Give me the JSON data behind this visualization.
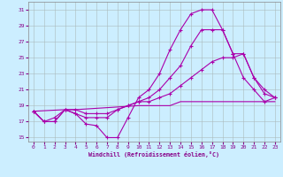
{
  "bg_color": "#cceeff",
  "line_color": "#aa00aa",
  "grid_color": "#aabbbb",
  "xlim": [
    -0.5,
    23.5
  ],
  "ylim": [
    14.5,
    32
  ],
  "yticks": [
    15,
    17,
    19,
    21,
    23,
    25,
    27,
    29,
    31
  ],
  "xticks": [
    0,
    1,
    2,
    3,
    4,
    5,
    6,
    7,
    8,
    9,
    10,
    11,
    12,
    13,
    14,
    15,
    16,
    17,
    18,
    19,
    20,
    21,
    22,
    23
  ],
  "line1_x": [
    0,
    1,
    2,
    3,
    4,
    5,
    6,
    7,
    8,
    9,
    10,
    11,
    12,
    13,
    14,
    15,
    16,
    17,
    18,
    19,
    20,
    21,
    22,
    23
  ],
  "line1_y": [
    18.3,
    17.0,
    17.0,
    18.5,
    18.0,
    16.7,
    16.5,
    15.0,
    15.0,
    17.5,
    20.0,
    21.0,
    23.0,
    26.0,
    28.5,
    30.5,
    31.0,
    31.0,
    28.5,
    25.5,
    22.5,
    21.0,
    19.5,
    20.0
  ],
  "line2_x": [
    0,
    1,
    2,
    3,
    4,
    5,
    6,
    7,
    8,
    9,
    10,
    11,
    12,
    13,
    14,
    15,
    16,
    17,
    18,
    19,
    20,
    21,
    22,
    23
  ],
  "line2_y": [
    18.3,
    17.0,
    17.0,
    18.5,
    18.0,
    17.5,
    17.5,
    17.5,
    18.5,
    19.0,
    19.5,
    20.0,
    21.0,
    22.5,
    24.0,
    26.5,
    28.5,
    28.5,
    28.5,
    25.5,
    25.5,
    22.5,
    20.5,
    20.0
  ],
  "line3_x": [
    0,
    1,
    2,
    3,
    4,
    5,
    6,
    7,
    8,
    9,
    10,
    11,
    12,
    13,
    14,
    15,
    16,
    17,
    18,
    19,
    20,
    21,
    22,
    23
  ],
  "line3_y": [
    18.3,
    17.0,
    17.5,
    18.5,
    18.5,
    18.0,
    18.0,
    18.0,
    18.5,
    19.0,
    19.5,
    19.5,
    20.0,
    20.5,
    21.5,
    22.5,
    23.5,
    24.5,
    25.0,
    25.0,
    25.5,
    22.5,
    21.0,
    20.0
  ],
  "line4_x": [
    0,
    3,
    4,
    10,
    11,
    12,
    13,
    14,
    15,
    16,
    17,
    18,
    19,
    20,
    21,
    22,
    23
  ],
  "line4_y": [
    18.3,
    18.5,
    18.5,
    19.0,
    19.0,
    19.0,
    19.0,
    19.5,
    19.5,
    19.5,
    19.5,
    19.5,
    19.5,
    19.5,
    19.5,
    19.5,
    19.5
  ]
}
